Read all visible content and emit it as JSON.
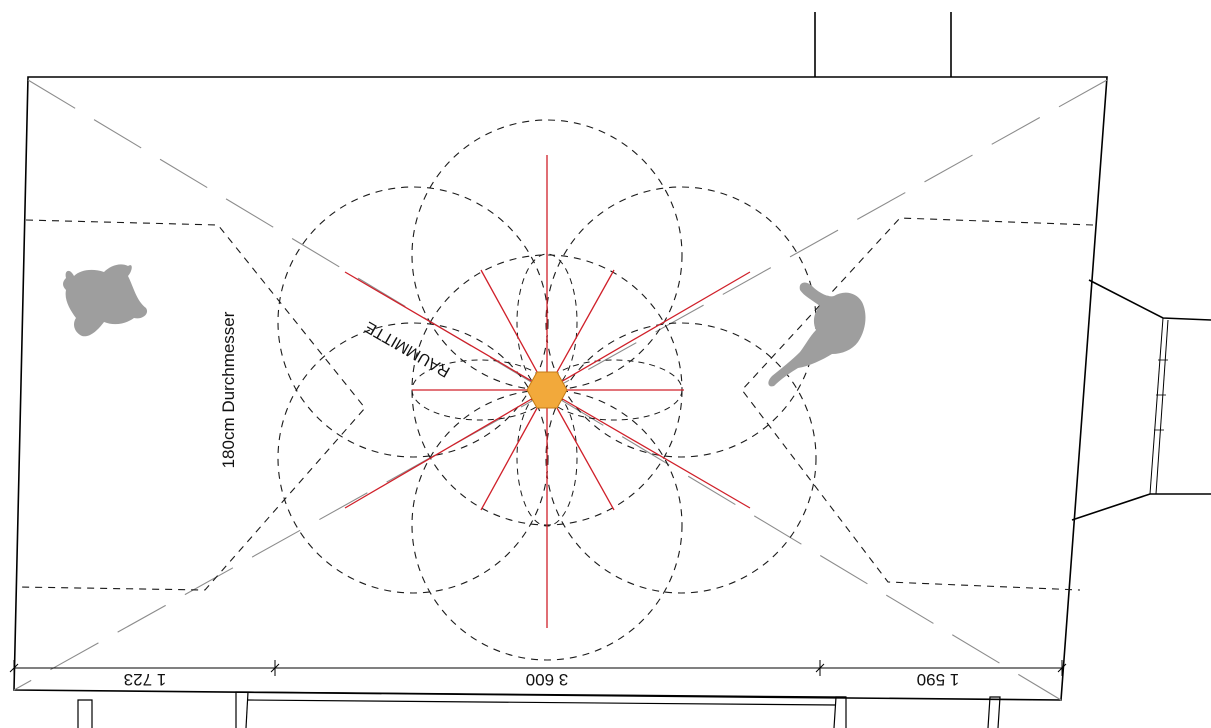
{
  "drawing": {
    "diameter_label": "180cm Durchmesser",
    "center_label": "RAUMMITTE",
    "dimensions": [
      {
        "text": "1 723"
      },
      {
        "text": "3 600"
      },
      {
        "text": "1 590"
      }
    ]
  },
  "colors": {
    "outline": "#000000",
    "dashed_circles": "#1a1a1a",
    "diagonals": "#8c8c8c",
    "radial_lines": "#d0202a",
    "center_hexagon": "#f2a93b",
    "animal_silhouettes": "#9e9e9e"
  }
}
